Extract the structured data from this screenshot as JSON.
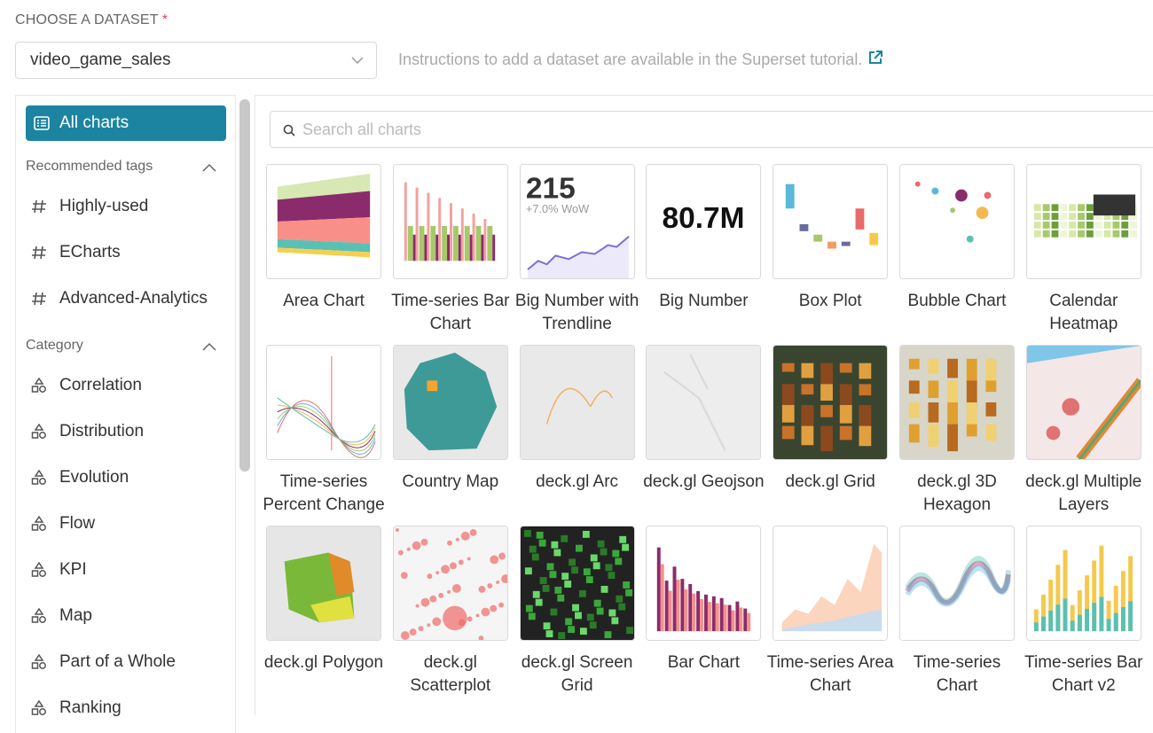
{
  "header": {
    "label": "CHOOSE A DATASET",
    "required_mark": "*"
  },
  "dataset_select": {
    "value": "video_game_sales"
  },
  "instructions": "Instructions to add a dataset are available in the Superset tutorial.",
  "sidebar": {
    "all_charts": "All charts",
    "tags_title": "Recommended tags",
    "tags": [
      "Highly-used",
      "ECharts",
      "Advanced-Analytics"
    ],
    "category_title": "Category",
    "categories": [
      "Correlation",
      "Distribution",
      "Evolution",
      "Flow",
      "KPI",
      "Map",
      "Part of a Whole",
      "Ranking"
    ]
  },
  "search": {
    "placeholder": "Search all charts"
  },
  "charts": [
    {
      "name": "Area Chart"
    },
    {
      "name": "Time-series Bar Chart"
    },
    {
      "name": "Big Number with Trendline",
      "thumbnail": [
        "215",
        "+7.0% WoW"
      ]
    },
    {
      "name": "Big Number",
      "thumbnail": [
        "80.7M"
      ]
    },
    {
      "name": "Box Plot"
    },
    {
      "name": "Bubble Chart"
    },
    {
      "name": "Calendar Heatmap"
    },
    {
      "name": "Time-series Percent Change"
    },
    {
      "name": "Country Map"
    },
    {
      "name": "deck.gl Arc"
    },
    {
      "name": "deck.gl Geojson"
    },
    {
      "name": "deck.gl Grid"
    },
    {
      "name": "deck.gl 3D Hexagon"
    },
    {
      "name": "deck.gl Multiple Layers"
    },
    {
      "name": "deck.gl Polygon"
    },
    {
      "name": "deck.gl Scatterplot"
    },
    {
      "name": "deck.gl Screen Grid"
    },
    {
      "name": "Bar Chart"
    },
    {
      "name": "Time-series Area Chart"
    },
    {
      "name": "Time-series Chart"
    },
    {
      "name": "Time-series Bar Chart v2"
    }
  ]
}
